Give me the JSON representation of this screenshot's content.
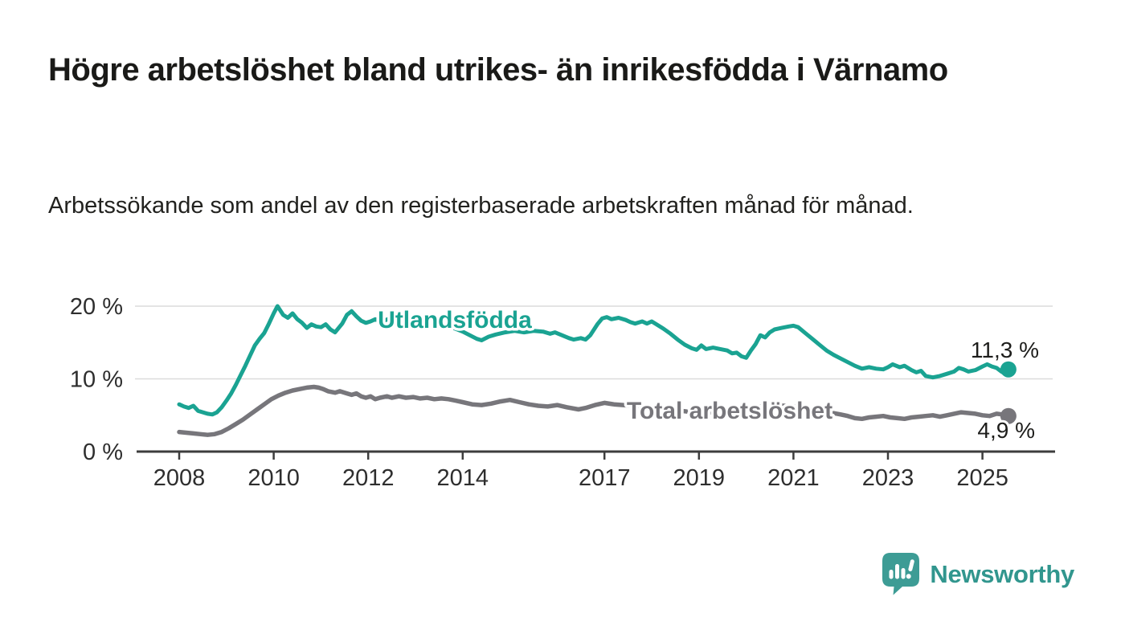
{
  "header": {
    "title": "Högre arbetslöshet bland utrikes- än inrikesfödda i Värnamo",
    "subtitle": "Arbetssökande som andel av den registerbaserade arbetskraften månad för månad."
  },
  "chart_data": {
    "type": "line",
    "title": "Högre arbetslöshet bland utrikes- än inrikesfödda i Värnamo",
    "subtitle": "Arbetssökande som andel av den registerbaserade arbetskraften månad för månad.",
    "unit": "%",
    "grid": "horizontal",
    "legend": "inline-labels",
    "xlim": [
      2008,
      2025.6
    ],
    "ylim": [
      0,
      21
    ],
    "x_ticks": [
      {
        "year": 2008,
        "label": "2008"
      },
      {
        "year": 2010,
        "label": "2010"
      },
      {
        "year": 2012,
        "label": "2012"
      },
      {
        "year": 2014,
        "label": "2014"
      },
      {
        "year": 2017,
        "label": "2017"
      },
      {
        "year": 2019,
        "label": "2019"
      },
      {
        "year": 2021,
        "label": "2021"
      },
      {
        "year": 2023,
        "label": "2023"
      },
      {
        "year": 2025,
        "label": "2025"
      }
    ],
    "y_ticks": [
      {
        "value": 0,
        "label": "0 %"
      },
      {
        "value": 10,
        "label": "10 %"
      },
      {
        "value": 20,
        "label": "20 %"
      }
    ],
    "series": [
      {
        "id": "utlandsfodda",
        "name": "Utlandsfödda",
        "color": "#1aa392",
        "width": 5,
        "end_label": "11,3 %",
        "end_value": 11.3,
        "points": [
          [
            2008.0,
            6.5
          ],
          [
            2008.1,
            6.2
          ],
          [
            2008.2,
            6.0
          ],
          [
            2008.3,
            6.3
          ],
          [
            2008.4,
            5.6
          ],
          [
            2008.5,
            5.4
          ],
          [
            2008.6,
            5.2
          ],
          [
            2008.7,
            5.1
          ],
          [
            2008.8,
            5.4
          ],
          [
            2008.9,
            6.1
          ],
          [
            2009.0,
            7.0
          ],
          [
            2009.1,
            8.0
          ],
          [
            2009.2,
            9.2
          ],
          [
            2009.3,
            10.5
          ],
          [
            2009.4,
            11.8
          ],
          [
            2009.5,
            13.2
          ],
          [
            2009.6,
            14.6
          ],
          [
            2009.7,
            15.5
          ],
          [
            2009.8,
            16.3
          ],
          [
            2009.9,
            17.6
          ],
          [
            2010.0,
            19.0
          ],
          [
            2010.08,
            20.0
          ],
          [
            2010.2,
            18.8
          ],
          [
            2010.3,
            18.4
          ],
          [
            2010.4,
            19.0
          ],
          [
            2010.5,
            18.2
          ],
          [
            2010.6,
            17.7
          ],
          [
            2010.7,
            17.0
          ],
          [
            2010.8,
            17.5
          ],
          [
            2010.9,
            17.2
          ],
          [
            2011.0,
            17.1
          ],
          [
            2011.1,
            17.5
          ],
          [
            2011.2,
            16.8
          ],
          [
            2011.3,
            16.4
          ],
          [
            2011.45,
            17.6
          ],
          [
            2011.55,
            18.8
          ],
          [
            2011.65,
            19.3
          ],
          [
            2011.75,
            18.6
          ],
          [
            2011.85,
            18.0
          ],
          [
            2011.95,
            17.7
          ],
          [
            2012.05,
            17.9
          ],
          [
            2012.15,
            18.2
          ],
          [
            2012.3,
            17.9
          ],
          [
            2012.45,
            18.3
          ],
          [
            2012.6,
            18.0
          ],
          [
            2012.8,
            18.2
          ],
          [
            2013.0,
            17.8
          ],
          [
            2013.2,
            17.9
          ],
          [
            2013.4,
            17.6
          ],
          [
            2013.6,
            17.3
          ],
          [
            2013.8,
            17.0
          ],
          [
            2014.0,
            16.5
          ],
          [
            2014.15,
            16.0
          ],
          [
            2014.3,
            15.5
          ],
          [
            2014.4,
            15.3
          ],
          [
            2014.55,
            15.8
          ],
          [
            2014.7,
            16.1
          ],
          [
            2014.9,
            16.4
          ],
          [
            2015.1,
            16.6
          ],
          [
            2015.3,
            16.4
          ],
          [
            2015.5,
            16.6
          ],
          [
            2015.7,
            16.5
          ],
          [
            2015.85,
            16.2
          ],
          [
            2015.95,
            16.4
          ],
          [
            2016.1,
            16.0
          ],
          [
            2016.25,
            15.6
          ],
          [
            2016.35,
            15.4
          ],
          [
            2016.5,
            15.6
          ],
          [
            2016.6,
            15.4
          ],
          [
            2016.7,
            16.0
          ],
          [
            2016.85,
            17.5
          ],
          [
            2016.95,
            18.3
          ],
          [
            2017.05,
            18.5
          ],
          [
            2017.15,
            18.2
          ],
          [
            2017.3,
            18.4
          ],
          [
            2017.45,
            18.1
          ],
          [
            2017.55,
            17.8
          ],
          [
            2017.65,
            17.6
          ],
          [
            2017.8,
            17.9
          ],
          [
            2017.9,
            17.6
          ],
          [
            2018.0,
            17.9
          ],
          [
            2018.1,
            17.5
          ],
          [
            2018.25,
            16.9
          ],
          [
            2018.4,
            16.2
          ],
          [
            2018.55,
            15.4
          ],
          [
            2018.7,
            14.7
          ],
          [
            2018.85,
            14.2
          ],
          [
            2018.95,
            14.0
          ],
          [
            2019.05,
            14.6
          ],
          [
            2019.15,
            14.1
          ],
          [
            2019.3,
            14.3
          ],
          [
            2019.45,
            14.1
          ],
          [
            2019.6,
            13.9
          ],
          [
            2019.7,
            13.5
          ],
          [
            2019.8,
            13.6
          ],
          [
            2019.9,
            13.1
          ],
          [
            2020.0,
            12.9
          ],
          [
            2020.1,
            13.9
          ],
          [
            2020.2,
            14.8
          ],
          [
            2020.3,
            16.0
          ],
          [
            2020.4,
            15.7
          ],
          [
            2020.5,
            16.4
          ],
          [
            2020.6,
            16.8
          ],
          [
            2020.75,
            17.0
          ],
          [
            2020.9,
            17.2
          ],
          [
            2021.0,
            17.3
          ],
          [
            2021.1,
            17.1
          ],
          [
            2021.25,
            16.3
          ],
          [
            2021.4,
            15.5
          ],
          [
            2021.55,
            14.7
          ],
          [
            2021.7,
            13.9
          ],
          [
            2021.85,
            13.3
          ],
          [
            2022.0,
            12.8
          ],
          [
            2022.15,
            12.3
          ],
          [
            2022.3,
            11.8
          ],
          [
            2022.45,
            11.4
          ],
          [
            2022.6,
            11.6
          ],
          [
            2022.75,
            11.4
          ],
          [
            2022.9,
            11.3
          ],
          [
            2023.0,
            11.6
          ],
          [
            2023.1,
            12.0
          ],
          [
            2023.25,
            11.6
          ],
          [
            2023.35,
            11.8
          ],
          [
            2023.5,
            11.2
          ],
          [
            2023.6,
            10.9
          ],
          [
            2023.7,
            11.1
          ],
          [
            2023.8,
            10.4
          ],
          [
            2023.95,
            10.2
          ],
          [
            2024.1,
            10.4
          ],
          [
            2024.25,
            10.7
          ],
          [
            2024.4,
            11.0
          ],
          [
            2024.5,
            11.5
          ],
          [
            2024.6,
            11.3
          ],
          [
            2024.7,
            11.0
          ],
          [
            2024.85,
            11.2
          ],
          [
            2025.0,
            11.7
          ],
          [
            2025.1,
            12.0
          ],
          [
            2025.2,
            11.7
          ],
          [
            2025.3,
            11.5
          ],
          [
            2025.4,
            11.0
          ],
          [
            2025.48,
            10.7
          ],
          [
            2025.55,
            11.3
          ]
        ]
      },
      {
        "id": "total",
        "name": "Total arbetslöshet",
        "color": "#77767b",
        "width": 5.5,
        "end_label": "4,9 %",
        "end_value": 4.9,
        "points": [
          [
            2008.0,
            2.7
          ],
          [
            2008.15,
            2.6
          ],
          [
            2008.3,
            2.5
          ],
          [
            2008.45,
            2.4
          ],
          [
            2008.6,
            2.3
          ],
          [
            2008.75,
            2.4
          ],
          [
            2008.9,
            2.7
          ],
          [
            2009.05,
            3.2
          ],
          [
            2009.2,
            3.8
          ],
          [
            2009.35,
            4.4
          ],
          [
            2009.5,
            5.1
          ],
          [
            2009.65,
            5.8
          ],
          [
            2009.8,
            6.5
          ],
          [
            2009.95,
            7.2
          ],
          [
            2010.1,
            7.7
          ],
          [
            2010.25,
            8.1
          ],
          [
            2010.4,
            8.4
          ],
          [
            2010.55,
            8.6
          ],
          [
            2010.7,
            8.8
          ],
          [
            2010.85,
            8.9
          ],
          [
            2010.95,
            8.8
          ],
          [
            2011.05,
            8.6
          ],
          [
            2011.15,
            8.3
          ],
          [
            2011.3,
            8.1
          ],
          [
            2011.4,
            8.3
          ],
          [
            2011.55,
            8.0
          ],
          [
            2011.65,
            7.8
          ],
          [
            2011.75,
            8.0
          ],
          [
            2011.85,
            7.6
          ],
          [
            2011.95,
            7.4
          ],
          [
            2012.05,
            7.6
          ],
          [
            2012.15,
            7.2
          ],
          [
            2012.25,
            7.4
          ],
          [
            2012.4,
            7.6
          ],
          [
            2012.5,
            7.4
          ],
          [
            2012.65,
            7.6
          ],
          [
            2012.8,
            7.4
          ],
          [
            2012.95,
            7.5
          ],
          [
            2013.1,
            7.3
          ],
          [
            2013.25,
            7.4
          ],
          [
            2013.4,
            7.2
          ],
          [
            2013.55,
            7.3
          ],
          [
            2013.7,
            7.2
          ],
          [
            2013.85,
            7.0
          ],
          [
            2014.0,
            6.8
          ],
          [
            2014.2,
            6.5
          ],
          [
            2014.4,
            6.4
          ],
          [
            2014.6,
            6.6
          ],
          [
            2014.8,
            6.9
          ],
          [
            2015.0,
            7.1
          ],
          [
            2015.2,
            6.8
          ],
          [
            2015.4,
            6.5
          ],
          [
            2015.6,
            6.3
          ],
          [
            2015.8,
            6.2
          ],
          [
            2016.0,
            6.4
          ],
          [
            2016.2,
            6.1
          ],
          [
            2016.45,
            5.8
          ],
          [
            2016.6,
            6.0
          ],
          [
            2016.8,
            6.4
          ],
          [
            2017.0,
            6.7
          ],
          [
            2017.2,
            6.5
          ],
          [
            2017.4,
            6.4
          ],
          [
            2017.6,
            6.3
          ],
          [
            2017.8,
            6.2
          ],
          [
            2018.0,
            6.0
          ],
          [
            2018.25,
            5.8
          ],
          [
            2018.5,
            5.7
          ],
          [
            2018.75,
            5.5
          ],
          [
            2019.0,
            5.5
          ],
          [
            2019.25,
            5.4
          ],
          [
            2019.5,
            5.3
          ],
          [
            2019.75,
            5.2
          ],
          [
            2020.0,
            5.4
          ],
          [
            2020.2,
            6.0
          ],
          [
            2020.4,
            6.4
          ],
          [
            2020.6,
            6.4
          ],
          [
            2020.8,
            6.3
          ],
          [
            2021.0,
            6.2
          ],
          [
            2021.25,
            6.0
          ],
          [
            2021.5,
            5.7
          ],
          [
            2021.75,
            5.4
          ],
          [
            2022.0,
            5.1
          ],
          [
            2022.15,
            4.9
          ],
          [
            2022.3,
            4.6
          ],
          [
            2022.45,
            4.5
          ],
          [
            2022.6,
            4.7
          ],
          [
            2022.75,
            4.8
          ],
          [
            2022.9,
            4.9
          ],
          [
            2023.05,
            4.7
          ],
          [
            2023.2,
            4.6
          ],
          [
            2023.35,
            4.5
          ],
          [
            2023.5,
            4.7
          ],
          [
            2023.65,
            4.8
          ],
          [
            2023.8,
            4.9
          ],
          [
            2023.95,
            5.0
          ],
          [
            2024.1,
            4.8
          ],
          [
            2024.25,
            5.0
          ],
          [
            2024.4,
            5.2
          ],
          [
            2024.55,
            5.4
          ],
          [
            2024.7,
            5.3
          ],
          [
            2024.85,
            5.2
          ],
          [
            2025.0,
            5.0
          ],
          [
            2025.15,
            4.9
          ],
          [
            2025.3,
            5.2
          ],
          [
            2025.42,
            5.1
          ],
          [
            2025.55,
            4.9
          ]
        ]
      }
    ]
  },
  "branding": {
    "logo_text": "Newsworthy",
    "logo_color": "#3d9c95",
    "logo_text_color": "#31968e",
    "icon": "newsworthy-speech-bubble-bar-chart"
  },
  "colors": {
    "accent_teal": "#1aa392",
    "series_gray": "#77767b",
    "axis": "#3d3d3d",
    "gridline": "#dcdcdc",
    "text": "#1a1a18"
  }
}
